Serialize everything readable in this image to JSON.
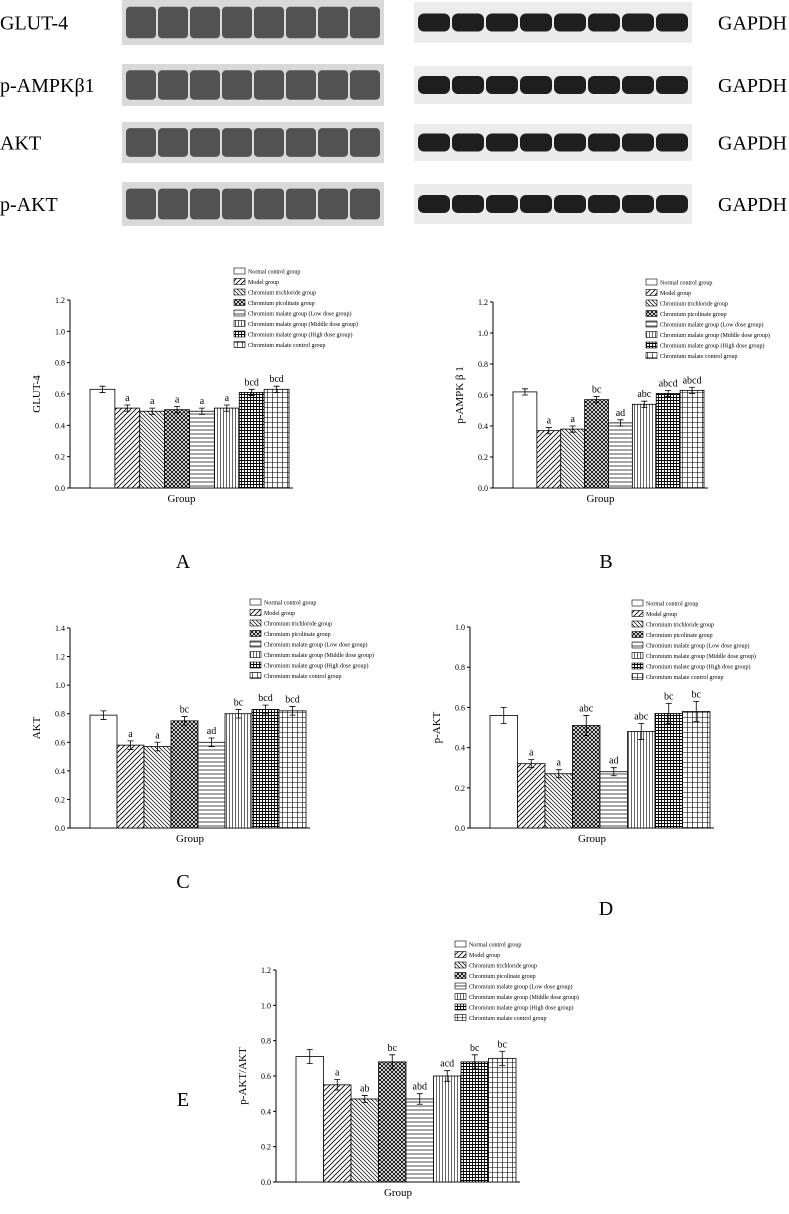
{
  "blots": [
    {
      "left": "GLUT-4",
      "right": "GAPDH"
    },
    {
      "left": "p-AMPKβ1",
      "right": "GAPDH"
    },
    {
      "left": "AKT",
      "right": "GAPDH"
    },
    {
      "left": "p-AKT",
      "right": "GAPDH"
    }
  ],
  "chart_data": [
    {
      "type": "bar",
      "panel": "A",
      "ylabel": "GLUT-4",
      "xlabel": "Group",
      "ylim": [
        0,
        1.2
      ],
      "yticks": [
        {
          "value": 0,
          "label": "0.0"
        },
        0.2,
        0.4,
        0.6,
        0.8,
        {
          "value": 1,
          "label": "1.0"
        },
        1.2
      ],
      "series": [
        {
          "name": "Normal control group",
          "values": [
            0.63
          ],
          "errors": [
            0.02
          ]
        },
        {
          "name": "Model group",
          "values": [
            0.51
          ],
          "errors": [
            0.02
          ],
          "letters": "a"
        },
        {
          "name": "Chromium trichloride group",
          "values": [
            0.49
          ],
          "errors": [
            0.02
          ],
          "letters": "a"
        },
        {
          "name": "Chromium picolinate group",
          "values": [
            0.5
          ],
          "errors": [
            0.02
          ],
          "letters": "a"
        },
        {
          "name": "Chromium malate group (Low dose group)",
          "values": [
            0.49
          ],
          "errors": [
            0.02
          ],
          "letters": "a"
        },
        {
          "name": "Chromium malate group (Middle dose group)",
          "values": [
            0.51
          ],
          "errors": [
            0.02
          ],
          "letters": "a"
        },
        {
          "name": "Chromium malate group (High dose group)",
          "values": [
            0.61
          ],
          "errors": [
            0.02
          ],
          "letters": "bcd"
        },
        {
          "name": "Chromium malate control group",
          "values": [
            0.63
          ],
          "errors": [
            0.02
          ],
          "letters": "bcd"
        }
      ]
    },
    {
      "type": "bar",
      "panel": "B",
      "ylabel": "p-AMPK β 1",
      "xlabel": "Group",
      "ylim": [
        0,
        1.2
      ],
      "yticks": [
        {
          "value": 0,
          "label": "0.0"
        },
        0.2,
        0.4,
        0.6,
        0.8,
        {
          "value": 1,
          "label": "1.0"
        },
        1.2
      ],
      "series": [
        {
          "name": "Normal control group",
          "values": [
            0.62
          ],
          "errors": [
            0.02
          ]
        },
        {
          "name": "Model group",
          "values": [
            0.37
          ],
          "errors": [
            0.02
          ],
          "letters": "a"
        },
        {
          "name": "Chromium trichloride group",
          "values": [
            0.38
          ],
          "errors": [
            0.02
          ],
          "letters": "a"
        },
        {
          "name": "Chromium picolinate group",
          "values": [
            0.57
          ],
          "errors": [
            0.02
          ],
          "letters": "bc"
        },
        {
          "name": "Chromium malate group (Low dose group)",
          "values": [
            0.42
          ],
          "errors": [
            0.02
          ],
          "letters": "ad"
        },
        {
          "name": "Chromium malate group (Middle dose group)",
          "values": [
            0.54
          ],
          "errors": [
            0.02
          ],
          "letters": "abc"
        },
        {
          "name": "Chromium malate group (High dose group)",
          "values": [
            0.61
          ],
          "errors": [
            0.02
          ],
          "letters": "abcd"
        },
        {
          "name": "Chromium malate control group",
          "values": [
            0.63
          ],
          "errors": [
            0.02
          ],
          "letters": "abcd"
        }
      ]
    },
    {
      "type": "bar",
      "panel": "C",
      "ylabel": "AKT",
      "xlabel": "Group",
      "ylim": [
        0,
        1.4
      ],
      "yticks": [
        {
          "value": 0,
          "label": "0.0"
        },
        0.2,
        0.4,
        0.6,
        0.8,
        {
          "value": 1,
          "label": "1.0"
        },
        1.2,
        1.4
      ],
      "series": [
        {
          "name": "Normal control group",
          "values": [
            0.79
          ],
          "errors": [
            0.03
          ]
        },
        {
          "name": "Model group",
          "values": [
            0.58
          ],
          "errors": [
            0.03
          ],
          "letters": "a"
        },
        {
          "name": "Chromium trichloride group",
          "values": [
            0.57
          ],
          "errors": [
            0.03
          ],
          "letters": "a"
        },
        {
          "name": "Chromium picolinate group",
          "values": [
            0.75
          ],
          "errors": [
            0.03
          ],
          "letters": "bc"
        },
        {
          "name": "Chromium malate group (Low dose group)",
          "values": [
            0.6
          ],
          "errors": [
            0.03
          ],
          "letters": "ad"
        },
        {
          "name": "Chromium malate group (Middle dose group)",
          "values": [
            0.8
          ],
          "errors": [
            0.03
          ],
          "letters": "bc"
        },
        {
          "name": "Chromium malate group (High dose group)",
          "values": [
            0.83
          ],
          "errors": [
            0.03
          ],
          "letters": "bcd"
        },
        {
          "name": "Chromium malate control group",
          "values": [
            0.82
          ],
          "errors": [
            0.03
          ],
          "letters": "bcd"
        }
      ]
    },
    {
      "type": "bar",
      "panel": "D",
      "ylabel": "p-AKT",
      "xlabel": "Group",
      "ylim": [
        0,
        1
      ],
      "yticks": [
        {
          "value": 0,
          "label": "0.0"
        },
        0.2,
        0.4,
        0.6,
        0.8,
        {
          "value": 1,
          "label": "1.0"
        }
      ],
      "series": [
        {
          "name": "Normal control group",
          "values": [
            0.56
          ],
          "errors": [
            0.04
          ]
        },
        {
          "name": "Model group",
          "values": [
            0.32
          ],
          "errors": [
            0.02
          ],
          "letters": "a"
        },
        {
          "name": "Chromium trichloride group",
          "values": [
            0.27
          ],
          "errors": [
            0.02
          ],
          "letters": "a"
        },
        {
          "name": "Chromium picolinate group",
          "values": [
            0.51
          ],
          "errors": [
            0.05
          ],
          "letters": "abc"
        },
        {
          "name": "Chromium malate group (Low dose group)",
          "values": [
            0.28
          ],
          "errors": [
            0.02
          ],
          "letters": "ad"
        },
        {
          "name": "Chromium malate group (Middle dose group)",
          "values": [
            0.48
          ],
          "errors": [
            0.04
          ],
          "letters": "abc"
        },
        {
          "name": "Chromium malate group (High dose group)",
          "values": [
            0.57
          ],
          "errors": [
            0.05
          ],
          "letters": "bc"
        },
        {
          "name": "Chromium malate control group",
          "values": [
            0.58
          ],
          "errors": [
            0.05
          ],
          "letters": "bc"
        }
      ]
    },
    {
      "type": "bar",
      "panel": "E",
      "ylabel": "p-AKT/AKT",
      "xlabel": "Group",
      "ylim": [
        0,
        1.2
      ],
      "yticks": [
        {
          "value": 0,
          "label": "0.0"
        },
        0.2,
        0.4,
        0.6,
        0.8,
        {
          "value": 1,
          "label": "1.0"
        },
        1.2
      ],
      "series": [
        {
          "name": "Normal control group",
          "values": [
            0.71
          ],
          "errors": [
            0.04
          ]
        },
        {
          "name": "Model group",
          "values": [
            0.55
          ],
          "errors": [
            0.03
          ],
          "letters": "a"
        },
        {
          "name": "Chromium trichloride group",
          "values": [
            0.47
          ],
          "errors": [
            0.02
          ],
          "letters": "ab"
        },
        {
          "name": "Chromium picolinate group",
          "values": [
            0.68
          ],
          "errors": [
            0.04
          ],
          "letters": "bc"
        },
        {
          "name": "Chromium malate group (Low dose group)",
          "values": [
            0.47
          ],
          "errors": [
            0.03
          ],
          "letters": "abd"
        },
        {
          "name": "Chromium malate group (Middle dose group)",
          "values": [
            0.6
          ],
          "errors": [
            0.03
          ],
          "letters": "acd"
        },
        {
          "name": "Chromium malate group (High dose group)",
          "values": [
            0.68
          ],
          "errors": [
            0.04
          ],
          "letters": "bc"
        },
        {
          "name": "Chromium malate control group",
          "values": [
            0.7
          ],
          "errors": [
            0.04
          ],
          "letters": "bc"
        }
      ]
    }
  ]
}
